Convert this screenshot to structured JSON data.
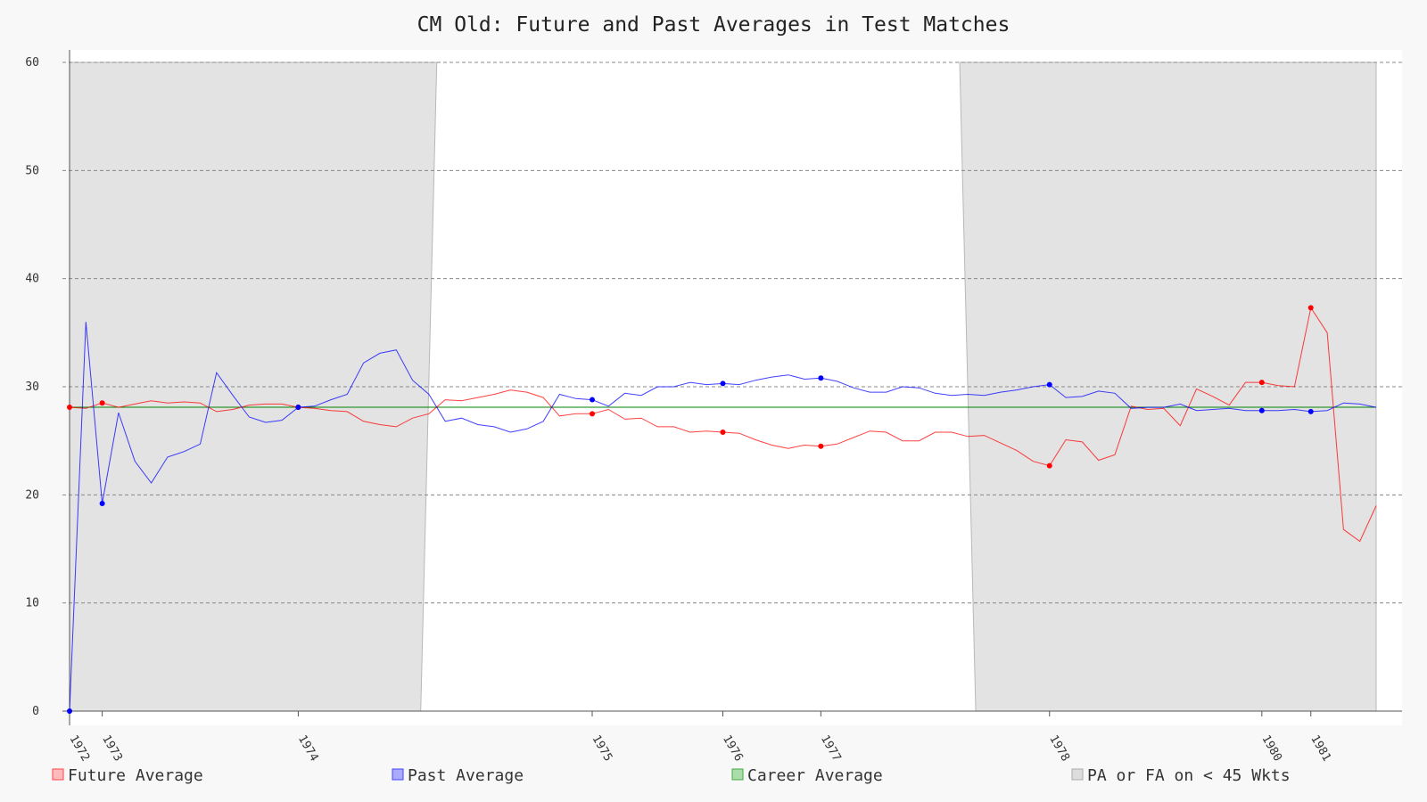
{
  "chart_data": {
    "type": "line",
    "title": "CM Old: Future and Past Averages in Test Matches",
    "xlabel": "",
    "ylabel": "",
    "ylim": [
      0,
      60
    ],
    "y_ticks": [
      0,
      10,
      20,
      30,
      40,
      50,
      60
    ],
    "grid": true,
    "legend_placement": "bottom",
    "x_year_labels": [
      {
        "label": "1972",
        "match": 1
      },
      {
        "label": "1973",
        "match": 3
      },
      {
        "label": "1974",
        "match": 15
      },
      {
        "label": "1975",
        "match": 33
      },
      {
        "label": "1976",
        "match": 41
      },
      {
        "label": "1977",
        "match": 47
      },
      {
        "label": "1978",
        "match": 61
      },
      {
        "label": "1980",
        "match": 74
      },
      {
        "label": "1981",
        "match": 77
      }
    ],
    "series": [
      {
        "name": "Future Average",
        "color": "#ff0000",
        "values": [
          28.1,
          28.0,
          28.5,
          28.1,
          28.4,
          28.7,
          28.5,
          28.6,
          28.5,
          27.7,
          27.9,
          28.3,
          28.4,
          28.4,
          28.1,
          28.0,
          27.8,
          27.7,
          26.8,
          26.5,
          26.3,
          27.1,
          27.5,
          28.8,
          28.7,
          29.0,
          29.3,
          29.7,
          29.5,
          29.0,
          27.3,
          27.5,
          27.5,
          27.9,
          27.0,
          27.1,
          26.3,
          26.3,
          25.8,
          25.9,
          25.8,
          25.7,
          25.1,
          24.6,
          24.3,
          24.6,
          24.5,
          24.7,
          25.3,
          25.9,
          25.8,
          25.0,
          25.0,
          25.8,
          25.8,
          25.4,
          25.5,
          24.8,
          24.1,
          23.1,
          22.7,
          25.1,
          24.9,
          23.2,
          23.7,
          28.2,
          27.9,
          28.0,
          26.4,
          29.8,
          29.1,
          28.3,
          30.4,
          30.4,
          30.1,
          30.0,
          37.3,
          35.0,
          16.8,
          15.7,
          19.0
        ],
        "highlighted_matches": [
          1,
          3,
          15,
          33,
          41,
          47,
          61,
          74,
          77
        ]
      },
      {
        "name": "Past Average",
        "color": "#0000ff",
        "values": [
          0.0,
          36.0,
          19.2,
          27.6,
          23.1,
          21.1,
          23.5,
          24.0,
          24.7,
          31.3,
          29.2,
          27.2,
          26.7,
          26.9,
          28.1,
          28.2,
          28.8,
          29.3,
          32.2,
          33.1,
          33.4,
          30.6,
          29.3,
          26.8,
          27.1,
          26.5,
          26.3,
          25.8,
          26.1,
          26.8,
          29.3,
          28.9,
          28.8,
          28.2,
          29.4,
          29.2,
          30.0,
          30.0,
          30.4,
          30.2,
          30.3,
          30.2,
          30.6,
          30.9,
          31.1,
          30.7,
          30.8,
          30.5,
          29.9,
          29.5,
          29.5,
          30.0,
          29.9,
          29.4,
          29.2,
          29.3,
          29.2,
          29.5,
          29.7,
          30.0,
          30.2,
          29.0,
          29.1,
          29.6,
          29.4,
          28.0,
          28.1,
          28.1,
          28.4,
          27.8,
          27.9,
          28.0,
          27.8,
          27.8,
          27.8,
          27.9,
          27.7,
          27.8,
          28.5,
          28.4,
          28.1
        ],
        "highlighted_matches": [
          1,
          3,
          15,
          33,
          41,
          47,
          61,
          74,
          77
        ]
      },
      {
        "name": "Career Average",
        "color": "#008000",
        "value": 28.1
      }
    ],
    "shaded_regions": {
      "name": "PA or FA on < 45 Wkts",
      "color": "#d9d9d9",
      "ranges": [
        [
          1,
          22.5
        ],
        [
          55.5,
          81
        ]
      ]
    }
  },
  "legend": {
    "future": "Future Average",
    "past": "Past Average",
    "career": "Career Average",
    "shaded": "PA or FA on < 45 Wkts"
  }
}
